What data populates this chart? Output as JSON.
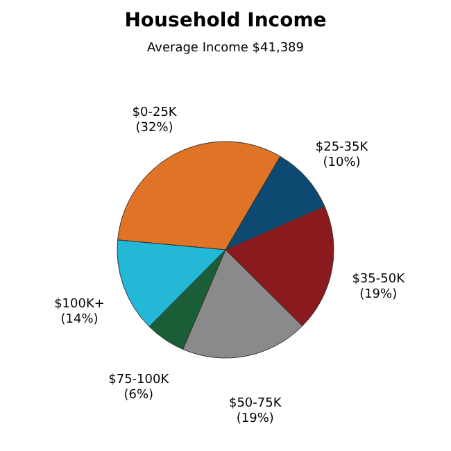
{
  "chart_data": {
    "type": "pie",
    "title": "Household Income",
    "subtitle": "Average Income  $41,389",
    "categories": [
      "$0-25K",
      "$25-35K",
      "$35-50K",
      "$50-75K",
      "$75-100K",
      "$100K+"
    ],
    "values": [
      32,
      10,
      19,
      19,
      6,
      14
    ],
    "value_labels": [
      "(32%)",
      "(10%)",
      "(19%)",
      "(19%)",
      "(6%)",
      "(14%)"
    ],
    "colors": [
      "#e07325",
      "#0d4a72",
      "#8a1a1e",
      "#8a8a8a",
      "#1a5e38",
      "#22b8d6"
    ],
    "legend": false
  }
}
